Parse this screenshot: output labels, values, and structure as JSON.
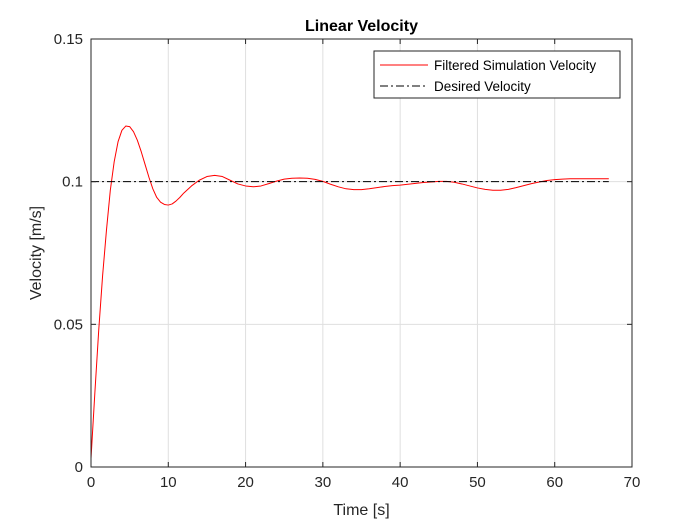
{
  "chart_data": {
    "type": "line",
    "title": "Linear Velocity",
    "xlabel": "Time [s]",
    "ylabel": "Velocity [m/s]",
    "xlim": [
      0,
      70
    ],
    "ylim": [
      0,
      0.15
    ],
    "xticks": [
      0,
      10,
      20,
      30,
      40,
      50,
      60,
      70
    ],
    "xtick_labels": [
      "0",
      "10",
      "20",
      "30",
      "40",
      "50",
      "60",
      "70"
    ],
    "yticks": [
      0,
      0.05,
      0.1,
      0.15
    ],
    "ytick_labels": [
      "0",
      "0.05",
      "0.1",
      "0.15"
    ],
    "grid": true,
    "legend_position": "top-right",
    "series": [
      {
        "name": "Filtered Simulation Velocity",
        "color": "#ff0000",
        "style": "solid",
        "x": [
          0,
          0.5,
          1,
          1.5,
          2,
          2.5,
          3,
          3.5,
          4,
          4.5,
          5,
          5.5,
          6,
          6.5,
          7,
          7.5,
          8,
          8.5,
          9,
          9.5,
          10,
          10.5,
          11,
          11.5,
          12,
          13,
          14,
          15,
          16,
          17,
          18,
          19,
          20,
          21,
          22,
          23,
          24,
          25,
          26,
          27,
          28,
          29,
          30,
          31,
          32,
          33,
          34,
          35,
          36,
          37,
          38,
          39,
          40,
          41,
          42,
          43,
          44,
          45,
          46,
          47,
          48,
          49,
          50,
          51,
          52,
          53,
          54,
          55,
          56,
          57,
          58,
          59,
          60,
          61,
          62,
          63,
          64,
          65,
          66,
          67
        ],
        "y": [
          0.003,
          0.026,
          0.048,
          0.067,
          0.083,
          0.097,
          0.107,
          0.114,
          0.118,
          0.1195,
          0.1193,
          0.1175,
          0.1145,
          0.1105,
          0.106,
          0.1015,
          0.0975,
          0.0945,
          0.0928,
          0.092,
          0.0918,
          0.0922,
          0.0932,
          0.0945,
          0.096,
          0.0985,
          0.1005,
          0.1018,
          0.1022,
          0.1018,
          0.1005,
          0.0992,
          0.0985,
          0.0982,
          0.0985,
          0.0993,
          0.1002,
          0.1009,
          0.1012,
          0.1013,
          0.1012,
          0.1008,
          0.1001,
          0.0991,
          0.0982,
          0.0975,
          0.0972,
          0.0972,
          0.0975,
          0.0979,
          0.0983,
          0.0986,
          0.0988,
          0.0991,
          0.0994,
          0.0997,
          0.0999,
          0.1001,
          0.1001,
          0.0998,
          0.0992,
          0.0985,
          0.0978,
          0.0973,
          0.097,
          0.097,
          0.0973,
          0.0979,
          0.0986,
          0.0993,
          0.0999,
          0.1004,
          0.1007,
          0.1009,
          0.101,
          0.101,
          0.101,
          0.101,
          0.101,
          0.101
        ]
      },
      {
        "name": "Desired Velocity",
        "color": "#000000",
        "style": "dash-dot",
        "x": [
          0,
          67
        ],
        "y": [
          0.1,
          0.1
        ]
      }
    ]
  }
}
